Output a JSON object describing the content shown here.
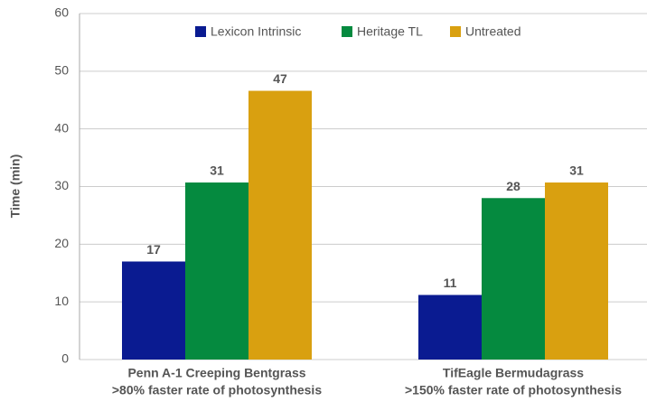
{
  "chart_data": {
    "type": "bar",
    "y_label": "Time (min)",
    "categories": [
      "Penn A-1 Creeping Bentgrass",
      "TifEagle Bermudagrass"
    ],
    "category_notes": [
      ">80% faster rate of photosynthesis",
      ">150% faster rate of photosynthesis"
    ],
    "series": [
      {
        "name": "Lexicon Intrinsic",
        "color": "#0a1b91",
        "values": [
          17,
          11.2
        ],
        "value_labels": [
          "17",
          "11"
        ]
      },
      {
        "name": "Heritage TL",
        "color": "#058a3f",
        "values": [
          30.7,
          28
        ],
        "value_labels": [
          "31",
          "28"
        ]
      },
      {
        "name": "Untreated",
        "color": "#d9a010",
        "values": [
          46.6,
          30.7
        ],
        "value_labels": [
          "47",
          "31"
        ]
      }
    ],
    "ylim": [
      0,
      60
    ],
    "yticks": [
      0,
      10,
      20,
      30,
      40,
      50,
      60
    ],
    "grid": true,
    "legend": "top"
  }
}
